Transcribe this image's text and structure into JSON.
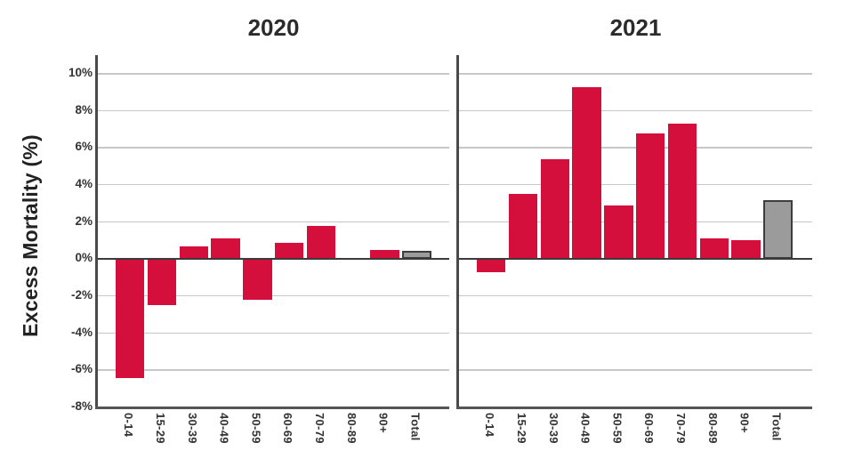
{
  "figure": {
    "background": "#ffffff"
  },
  "chart_data": {
    "type": "bar",
    "title": "",
    "ylabel": "Excess Mortality (%)",
    "xlabel": "",
    "categories": [
      "0-14",
      "15-29",
      "30-39",
      "40-49",
      "50-59",
      "60-69",
      "70-79",
      "80-89",
      "90+",
      "Total"
    ],
    "series": [
      {
        "name": "2020",
        "values": [
          -6.4,
          -2.5,
          0.7,
          1.1,
          -2.2,
          0.9,
          1.8,
          0,
          0.5,
          0.45
        ]
      },
      {
        "name": "2021",
        "values": [
          -0.7,
          3.5,
          5.4,
          9.3,
          2.9,
          6.8,
          7.3,
          1.1,
          1.0,
          3.2
        ]
      }
    ],
    "ylim": [
      -8,
      10
    ],
    "ytick_step": 2,
    "ytick_labels": [
      "10%",
      "8%",
      "6%",
      "4%",
      "2%",
      "0%",
      "-2%",
      "-4%",
      "-6%",
      "-8%"
    ],
    "grid": true,
    "legend": "none",
    "colors": {
      "bar": "#d50f3c",
      "total_bar_fill": "#9b9b9b",
      "total_bar_border": "#3d3d3d",
      "gridline": "#c7c7c7",
      "zero_line": "#3b3b3b",
      "axis": "#4a4a4a",
      "text": "#333333"
    }
  }
}
